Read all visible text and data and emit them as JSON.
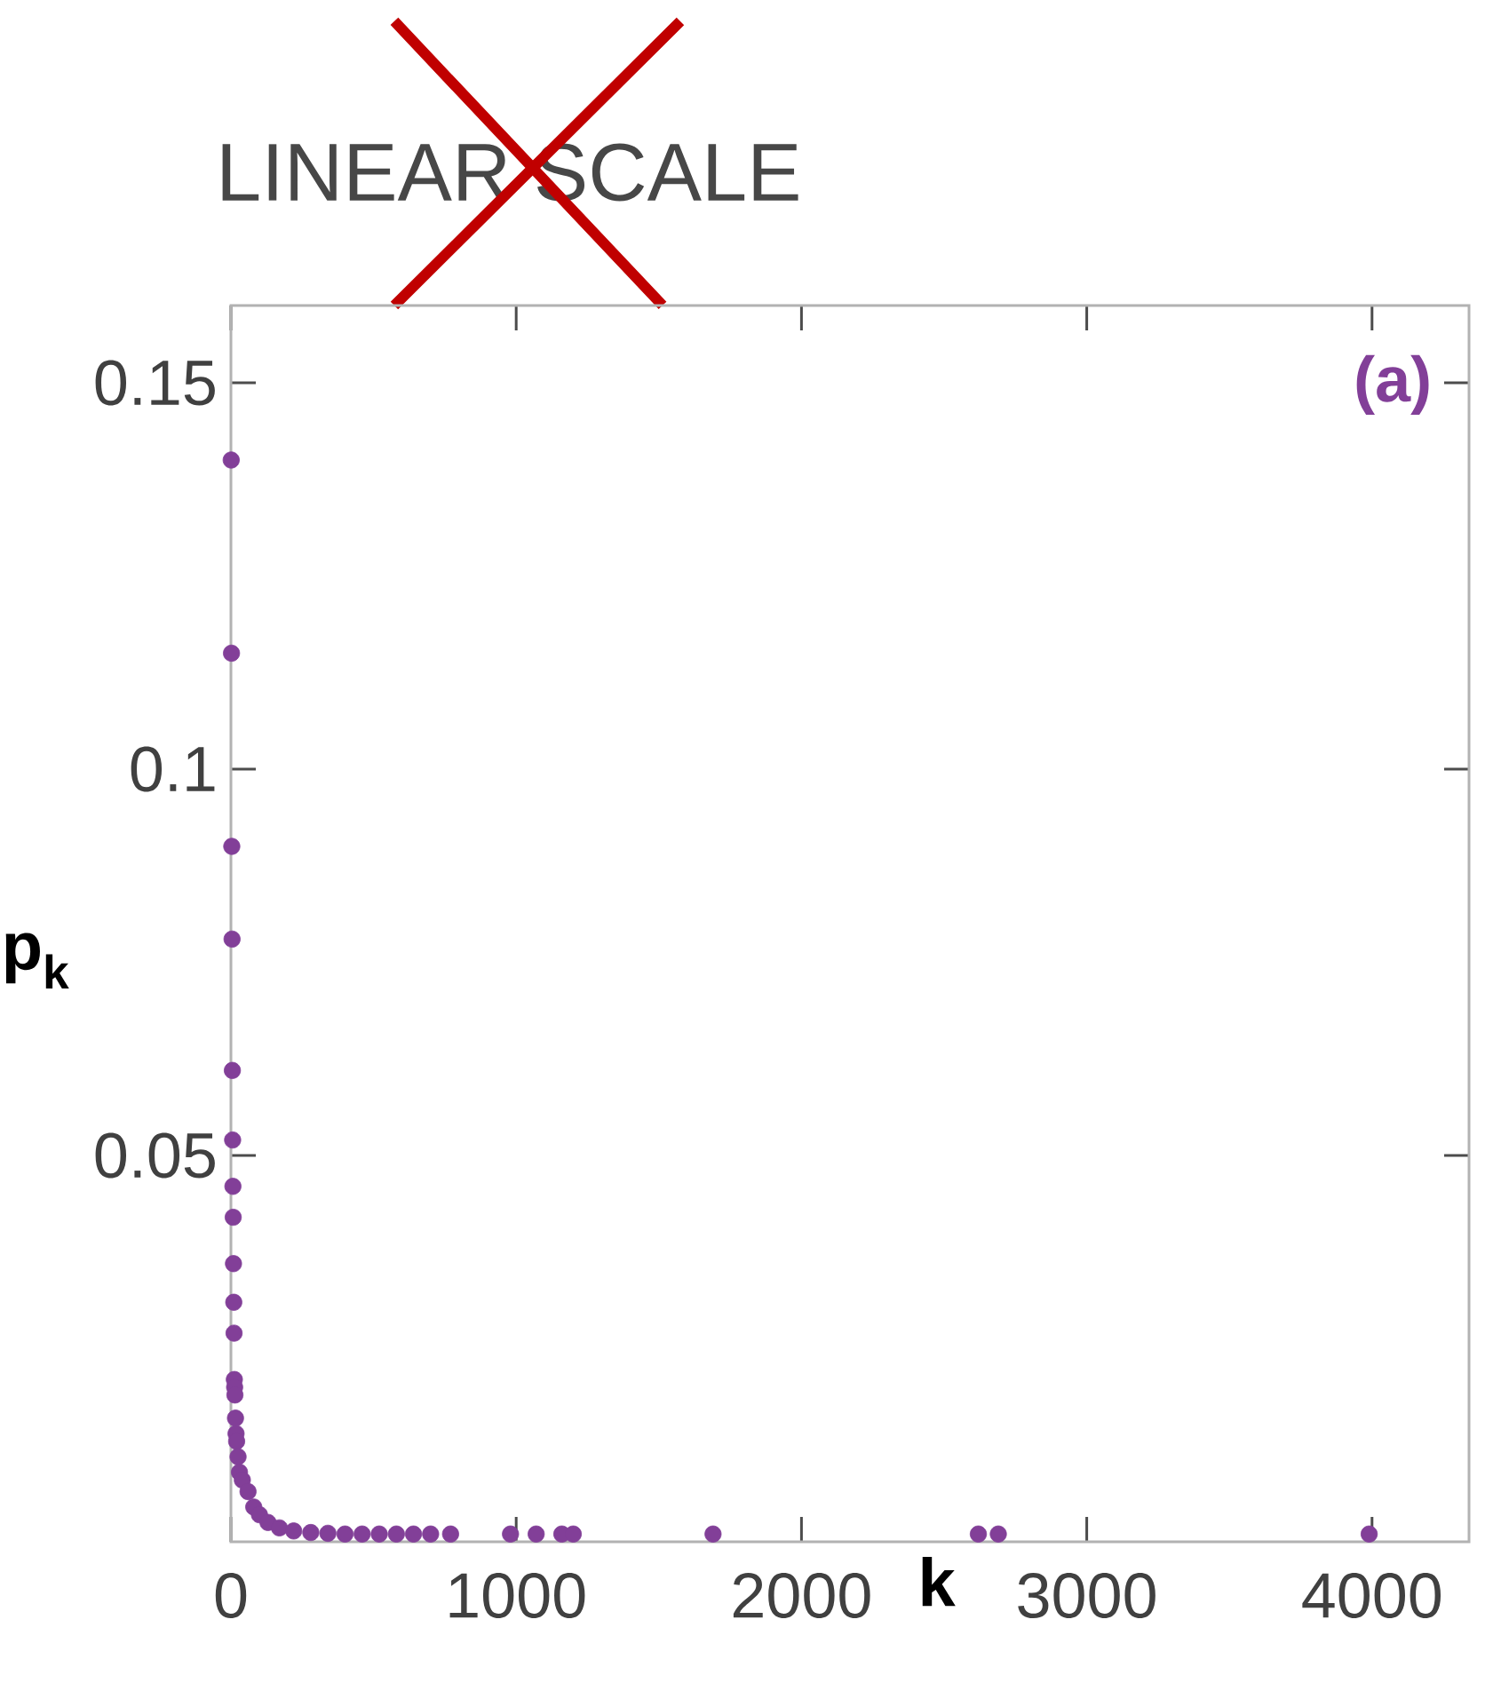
{
  "chart_data": {
    "type": "scatter",
    "title": "LINEAR SCALE",
    "xlabel": "k",
    "ylabel": "p$_{k}$",
    "annotations": [
      "(a)"
    ],
    "x": [
      1,
      2,
      3,
      4,
      5,
      6,
      7,
      8,
      9,
      10,
      11,
      12,
      13,
      14,
      16,
      18,
      20,
      25,
      30,
      40,
      60,
      80,
      100,
      130,
      170,
      220,
      280,
      340,
      400,
      460,
      520,
      580,
      640,
      700,
      770,
      980,
      1070,
      1160,
      1200,
      1690,
      2620,
      2690,
      3990
    ],
    "series": [
      {
        "color": "#823f98",
        "values": [
          0.14,
          0.115,
          0.09,
          0.078,
          0.061,
          0.052,
          0.046,
          0.042,
          0.036,
          0.031,
          0.027,
          0.021,
          0.02,
          0.019,
          0.016,
          0.014,
          0.013,
          0.011,
          0.009,
          0.008,
          0.0065,
          0.0045,
          0.0035,
          0.0025,
          0.0018,
          0.0014,
          0.0012,
          0.0011,
          0.001,
          0.001,
          0.001,
          0.001,
          0.001,
          0.001,
          0.001,
          0.001,
          0.001,
          0.001,
          0.001,
          0.001,
          0.001,
          0.001,
          0.001
        ]
      }
    ],
    "xlim": [
      0,
      4340
    ],
    "ylim": [
      0,
      0.16
    ],
    "xticks": [
      0,
      1000,
      2000,
      3000,
      4000
    ],
    "yticks": [
      0.05,
      0.1,
      0.15
    ],
    "marker": "circle",
    "grid": false
  }
}
